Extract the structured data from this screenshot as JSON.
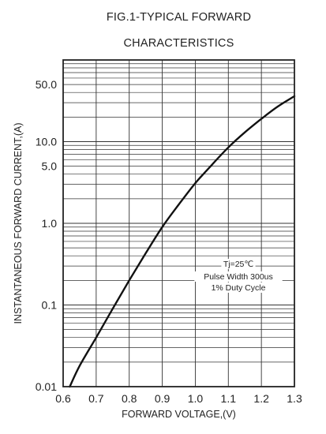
{
  "chart_data": {
    "type": "line",
    "title_lines": [
      "FIG.1-TYPICAL FORWARD",
      "CHARACTERISTICS"
    ],
    "xlabel": "FORWARD VOLTAGE,(V)",
    "ylabel": "INSTANTANEOUS FORWARD CURRENT,(A)",
    "x_ticks": [
      "0.6",
      "0.7",
      "0.8",
      "0.9",
      "1.0",
      "1.1",
      "1.2",
      "1.3"
    ],
    "y_ticks": [
      {
        "value": 0.01,
        "label": "0.01"
      },
      {
        "value": 0.1,
        "label": "0.1"
      },
      {
        "value": 1,
        "label": "1.0"
      },
      {
        "value": 5,
        "label": "5.0"
      },
      {
        "value": 10,
        "label": "10.0"
      },
      {
        "value": 50,
        "label": "50.0"
      }
    ],
    "xlim": [
      0.6,
      1.3
    ],
    "ylim": [
      0.01,
      100
    ],
    "y_scale": "log",
    "grid": true,
    "annotation_lines": [
      "Tj=25℃",
      "Pulse Width 300us",
      "1% Duty Cycle"
    ],
    "series": [
      {
        "x": [
          0.62,
          0.65,
          0.7,
          0.75,
          0.8,
          0.85,
          0.9,
          0.95,
          1.0,
          1.05,
          1.1,
          1.15,
          1.2,
          1.25,
          1.3
        ],
        "y": [
          0.01,
          0.018,
          0.04,
          0.09,
          0.2,
          0.43,
          0.9,
          1.7,
          3.1,
          5.2,
          8.5,
          13,
          19,
          27,
          36
        ]
      }
    ]
  }
}
